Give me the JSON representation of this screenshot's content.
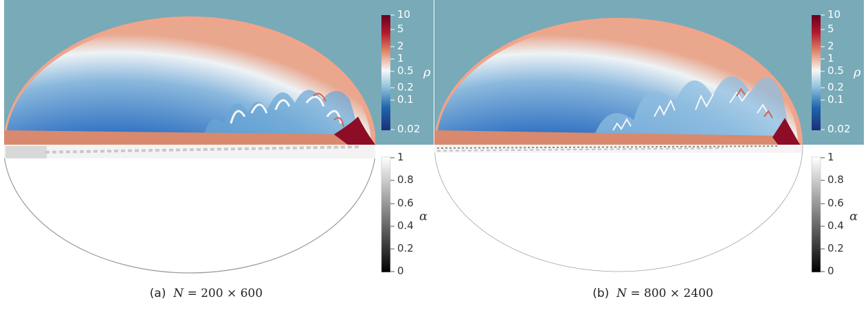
{
  "panels": [
    {
      "caption_label": "(a)",
      "caption_var": "N",
      "caption_eq": "=",
      "caption_value": "200 × 600",
      "colorbar_rho": {
        "title": "ρ",
        "ticks": [
          "10",
          "5",
          "2",
          "1",
          "0.5",
          "0.2",
          "0.1",
          "0.02"
        ]
      },
      "colorbar_alpha": {
        "title": "α",
        "ticks": [
          "1",
          "0.8",
          "0.6",
          "0.4",
          "0.2",
          "0"
        ]
      }
    },
    {
      "caption_label": "(b)",
      "caption_var": "N",
      "caption_eq": "=",
      "caption_value": "800 × 2400",
      "colorbar_rho": {
        "title": "ρ",
        "ticks": [
          "10",
          "5",
          "2",
          "1",
          "0.5",
          "0.2",
          "0.1",
          "0.02"
        ]
      },
      "colorbar_alpha": {
        "title": "α",
        "ticks": [
          "1",
          "0.8",
          "0.6",
          "0.4",
          "0.2",
          "0"
        ]
      }
    }
  ],
  "colors": {
    "background_ambient": "#79aab8",
    "rho_high": "#67001f",
    "rho_mid": "#f7f7f7",
    "rho_low": "#1a2f7a",
    "jet_band": "#d9896e",
    "alpha_high": "#ffffff",
    "alpha_low": "#000000"
  }
}
